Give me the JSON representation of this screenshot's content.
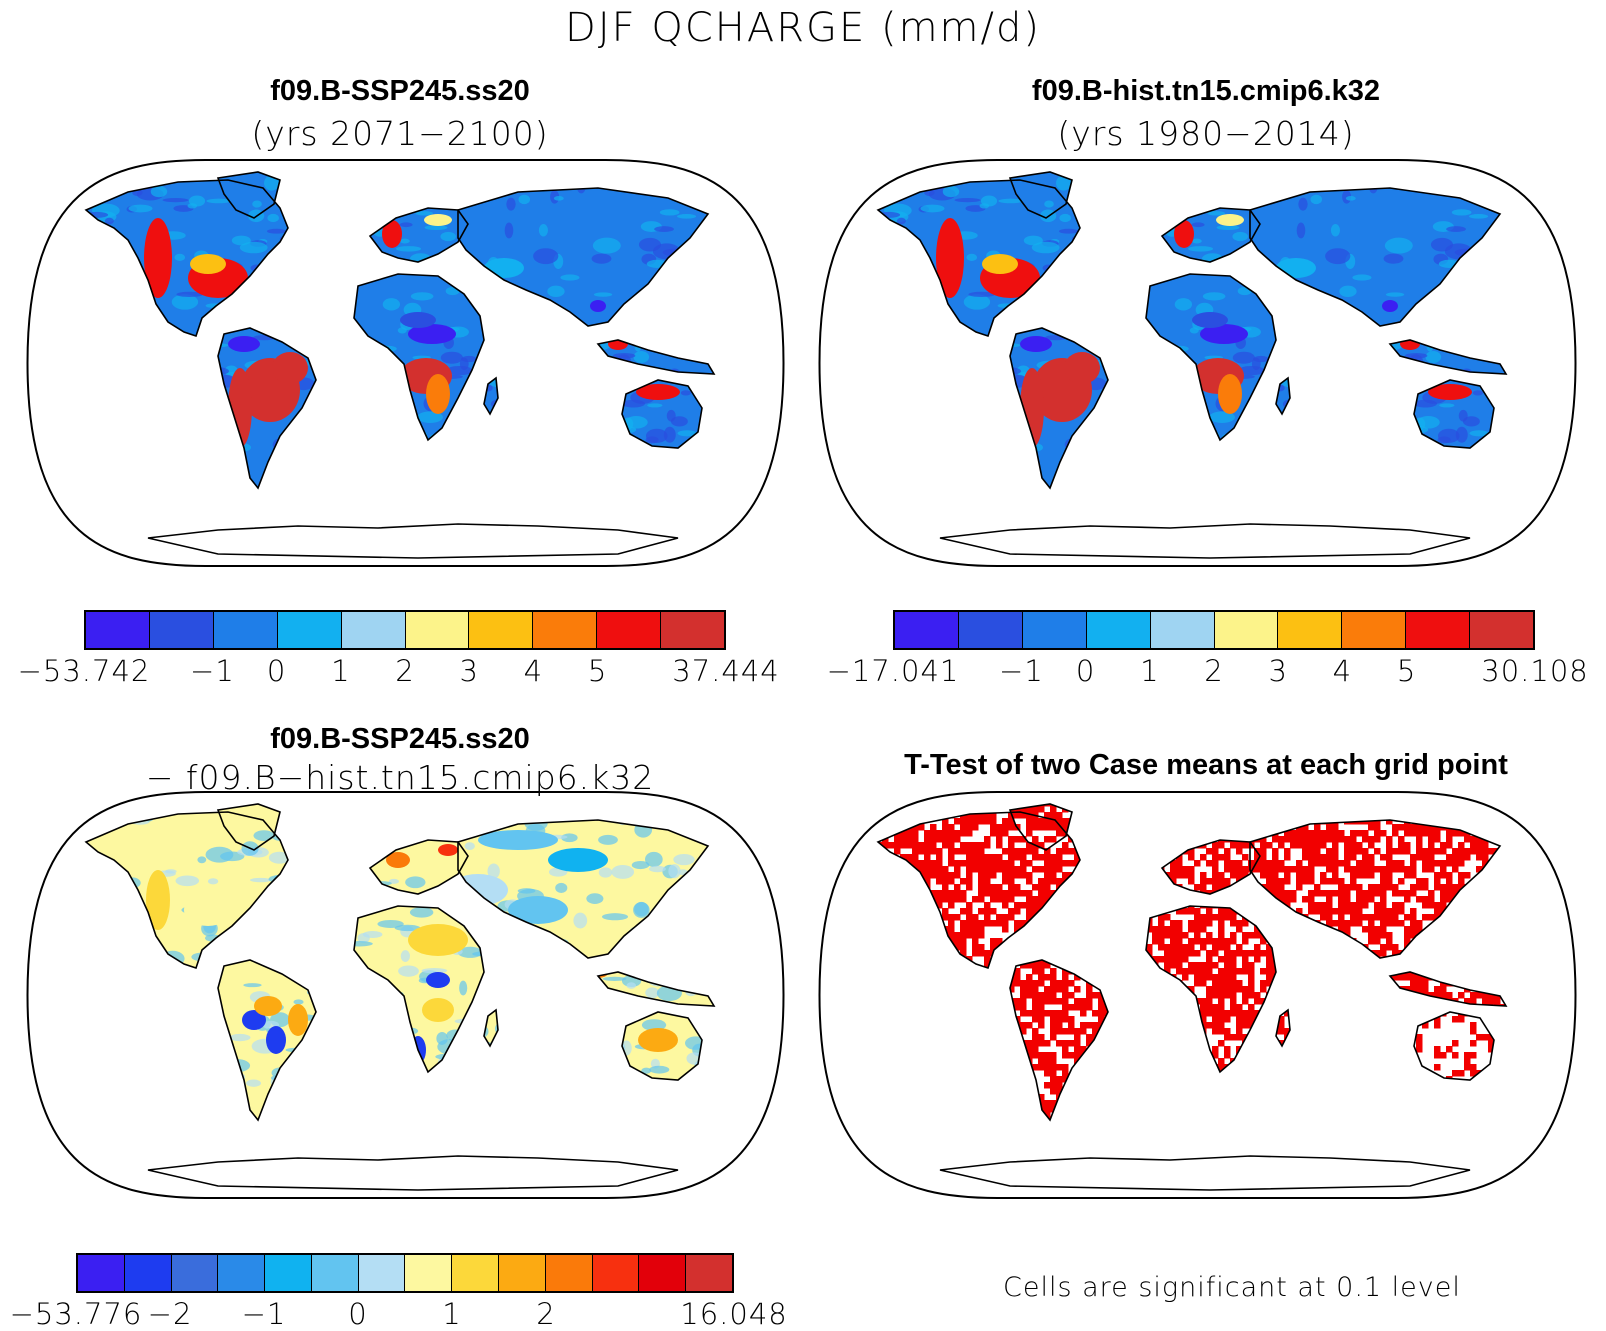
{
  "figure": {
    "title": "DJF QCHARGE (mm/d)"
  },
  "panels": [
    {
      "id": "top-left",
      "title": "f09.B-SSP245.ss20",
      "subtitle": "(yrs 2071−2100)",
      "kind": "field",
      "colorbar": {
        "colors": [
          "#3b1ff2",
          "#2a4fe0",
          "#1f7ee8",
          "#12b0f0",
          "#9fd4f2",
          "#fcf38a",
          "#fcc012",
          "#fa7c0a",
          "#ef0f0f",
          "#d3302e"
        ],
        "ticks": [
          "−53.742",
          "−1",
          "0",
          "1",
          "2",
          "3",
          "4",
          "5",
          "37.444"
        ]
      }
    },
    {
      "id": "top-right",
      "title": "f09.B-hist.tn15.cmip6.k32",
      "subtitle": "(yrs 1980−2014)",
      "kind": "field",
      "colorbar": {
        "colors": [
          "#3b1ff2",
          "#2a4fe0",
          "#1f7ee8",
          "#12b0f0",
          "#9fd4f2",
          "#fcf38a",
          "#fcc012",
          "#fa7c0a",
          "#ef0f0f",
          "#d3302e"
        ],
        "ticks": [
          "−17.041",
          "−1",
          "0",
          "1",
          "2",
          "3",
          "4",
          "5",
          "30.108"
        ]
      }
    },
    {
      "id": "bottom-left",
      "title": "f09.B-SSP245.ss20",
      "subtitle": "− f09.B−hist.tn15.cmip6.k32",
      "kind": "difference",
      "colorbar": {
        "colors": [
          "#3b1ff2",
          "#1e3cf0",
          "#3a6ddc",
          "#2a8ae8",
          "#10b2f0",
          "#62c4f0",
          "#b4def4",
          "#fdf8a0",
          "#fcd83a",
          "#fcaa12",
          "#fa7a0a",
          "#f7300f",
          "#e2000a",
          "#d3302e"
        ],
        "ticks": [
          "−53.776",
          "−2",
          "−1",
          "0",
          "1",
          "2",
          "16.048"
        ]
      }
    },
    {
      "id": "bottom-right",
      "title": "T-Test of two Case means at each grid point",
      "kind": "significance",
      "significance_color": "#f20000",
      "note": "Cells are significant at 0.1 level"
    }
  ]
}
